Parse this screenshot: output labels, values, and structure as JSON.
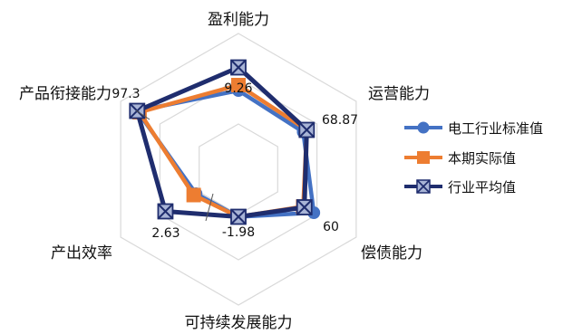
{
  "chart_data": {
    "type": "radar",
    "categories": [
      "盈利能力",
      "运营能力",
      "偿债能力",
      "可持续发展能力",
      "产出效率",
      "产品衔接能力"
    ],
    "series": [
      {
        "name": "电工行业标准值",
        "color": "#4472C4",
        "values": [
          0.58,
          0.55,
          0.64,
          0.35,
          0.36,
          0.86
        ]
      },
      {
        "name": "本期实际值",
        "color": "#ED7D31",
        "values": [
          0.62,
          0.58,
          0.55,
          0.35,
          0.38,
          0.84
        ]
      },
      {
        "name": "行业平均值",
        "color": "#1F2D6E",
        "values": [
          0.75,
          0.58,
          0.56,
          0.35,
          0.62,
          0.86
        ]
      }
    ],
    "data_labels": [
      "9.26",
      "68.87",
      "60",
      "-1.98",
      "2.63",
      "97.3"
    ],
    "grid": true,
    "legend": "right"
  }
}
